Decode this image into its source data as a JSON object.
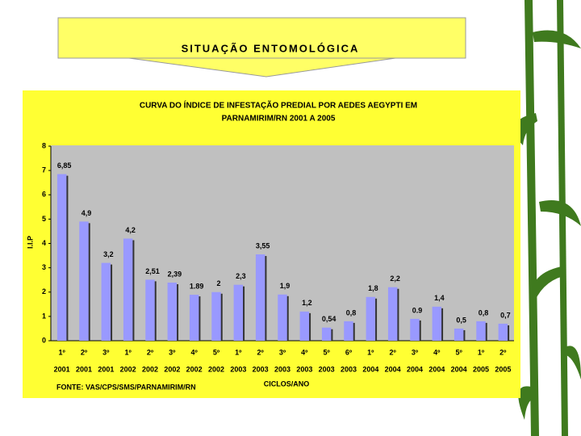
{
  "slide_title": "SITUAÇÃO ENTOMOLÓGICA",
  "chart_data": {
    "type": "bar",
    "title": [
      "CURVA DO ÍNDICE DE INFESTAÇÃO PREDIAL POR AEDES AEGYPTI EM",
      "PARNAMIRIM/RN 2001 A 2005"
    ],
    "y_label": "I.I.P",
    "x_label": "CICLOS/ANO",
    "source": "FONTE: VAS/CPS/SMS/PARNAMIRIM/RN",
    "categories": [
      [
        "1º",
        "2001"
      ],
      [
        "2º",
        "2001"
      ],
      [
        "3º",
        "2001"
      ],
      [
        "1º",
        "2002"
      ],
      [
        "2º",
        "2002"
      ],
      [
        "3º",
        "2002"
      ],
      [
        "4º",
        "2002"
      ],
      [
        "5º",
        "2002"
      ],
      [
        "1º",
        "2003"
      ],
      [
        "2º",
        "2003"
      ],
      [
        "3º",
        "2003"
      ],
      [
        "4º",
        "2003"
      ],
      [
        "5º",
        "2003"
      ],
      [
        "6º",
        "2003"
      ],
      [
        "1º",
        "2004"
      ],
      [
        "2º",
        "2004"
      ],
      [
        "3º",
        "2004"
      ],
      [
        "4º",
        "2004"
      ],
      [
        "5º",
        "2004"
      ],
      [
        "1º",
        "2005"
      ],
      [
        "2º",
        "2005"
      ]
    ],
    "values": [
      6.85,
      4.9,
      3.2,
      4.2,
      2.51,
      2.39,
      1.89,
      2,
      2.3,
      3.55,
      1.9,
      1.2,
      0.54,
      0.8,
      1.8,
      2.2,
      0.9,
      1.4,
      0.5,
      0.8,
      0.7
    ],
    "value_labels": [
      "6,85",
      "4,9",
      "3,2",
      "4,2",
      "2,51",
      "2,39",
      "1.89",
      "2",
      "2,3",
      "3,55",
      "1,9",
      "1,2",
      "0,54",
      "0,8",
      "1,8",
      "2,2",
      "0.9",
      "1,4",
      "0,5",
      "0,8",
      "0,7"
    ],
    "color": "#9999ff",
    "ylim": [
      0,
      8
    ],
    "yticks": [
      0,
      1,
      2,
      3,
      4,
      5,
      6,
      7,
      8
    ],
    "grid": false
  }
}
